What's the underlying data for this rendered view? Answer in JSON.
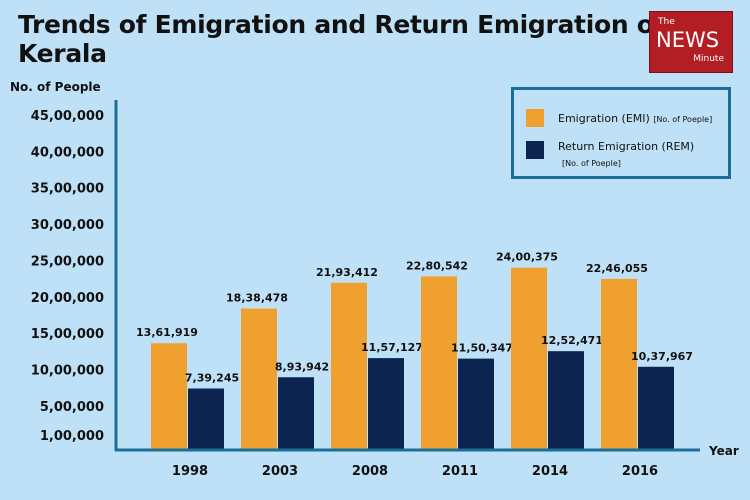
{
  "title": "Trends of Emigration and Return Emigration of Kerala",
  "logo": {
    "the": "The",
    "news": "NEWS",
    "minute": "Minute"
  },
  "legend": {
    "emi_label": "Emigration (EMI)",
    "emi_unit": "[No. of Poeple]",
    "rem_label": "Return Emigration (REM)",
    "rem_unit": "[No. of Poeple]"
  },
  "colors": {
    "emi": "#f0a02e",
    "rem": "#0c2450",
    "axis": "#1a6f9a"
  },
  "chart_data": {
    "type": "bar",
    "title": "Trends of Emigration and Return Emigration of Kerala",
    "xlabel": "Year",
    "ylabel": "No. of People",
    "categories": [
      "1998",
      "2003",
      "2008",
      "2011",
      "2014",
      "2016"
    ],
    "series": [
      {
        "name": "Emigration (EMI)",
        "values": [
          1361919,
          1838478,
          2193412,
          2280542,
          2400375,
          2246055
        ],
        "labels": [
          "13,61,919",
          "18,38,478",
          "21,93,412",
          "22,80,542",
          "24,00,375",
          "22,46,055"
        ]
      },
      {
        "name": "Return Emigration (REM)",
        "values": [
          739245,
          893942,
          1157127,
          1150347,
          1252471,
          1037967
        ],
        "labels": [
          "7,39,245",
          "8,93,942",
          "11,57,127",
          "11,50,347",
          "12,52,471",
          "10,37,967"
        ]
      }
    ],
    "y_ticks": [
      100000,
      500000,
      1000000,
      1500000,
      2000000,
      2500000,
      3000000,
      3500000,
      4000000,
      4500000
    ],
    "y_tick_labels": [
      "1,00,000",
      "5,00,000",
      "10,00,000",
      "15,00,000",
      "20,00,000",
      "25,00,000",
      "30,00,000",
      "35,00,000",
      "40,00,000",
      "45,00,000"
    ],
    "ylim": [
      0,
      4500000
    ],
    "grid": false,
    "legend_position": "top-right"
  }
}
